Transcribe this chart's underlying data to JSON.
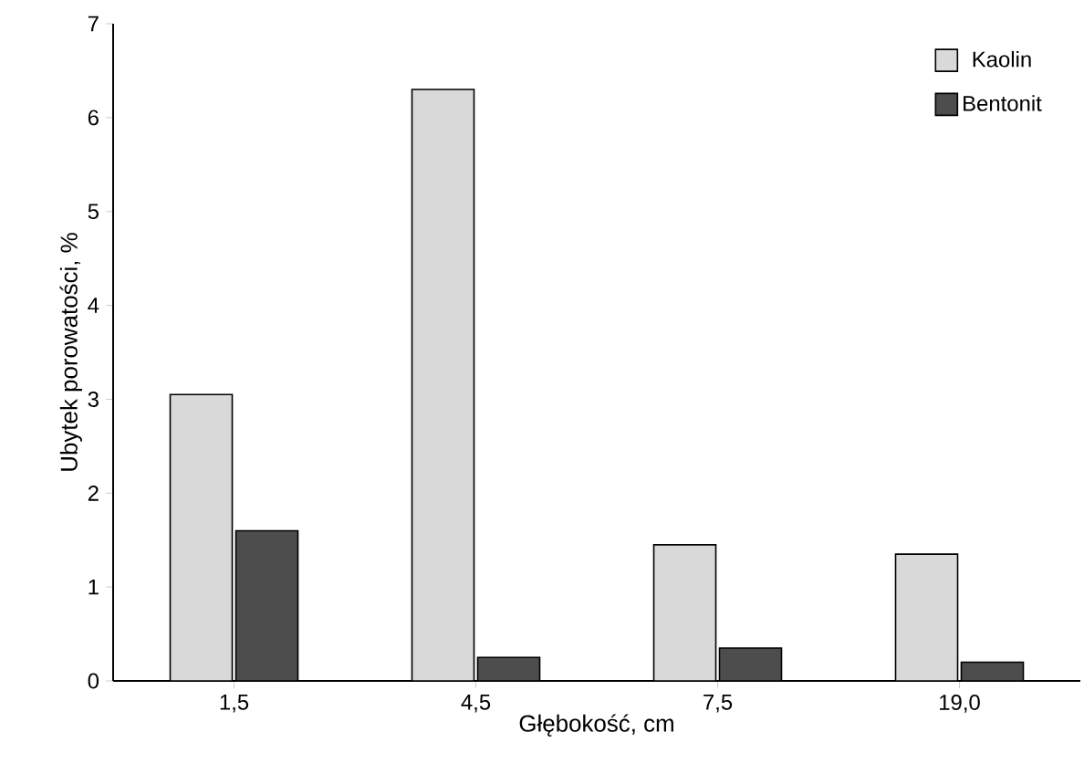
{
  "chart_data": {
    "type": "bar",
    "xlabel": "Głębokość, cm",
    "ylabel": "Ubytek porowatości, %",
    "categories": [
      "1,5",
      "4,5",
      "7,5",
      "19,0"
    ],
    "series": [
      {
        "name": "Kaolin",
        "color": "#d9d9d9",
        "values": [
          3.05,
          6.3,
          1.45,
          1.35
        ]
      },
      {
        "name": "Bentonit",
        "color": "#4d4d4d",
        "values": [
          1.6,
          0.25,
          0.35,
          0.2
        ]
      }
    ],
    "ylim": [
      0,
      7
    ],
    "yticks": [
      0,
      1,
      2,
      3,
      4,
      5,
      6,
      7
    ],
    "legend": "top right",
    "grid": false
  }
}
